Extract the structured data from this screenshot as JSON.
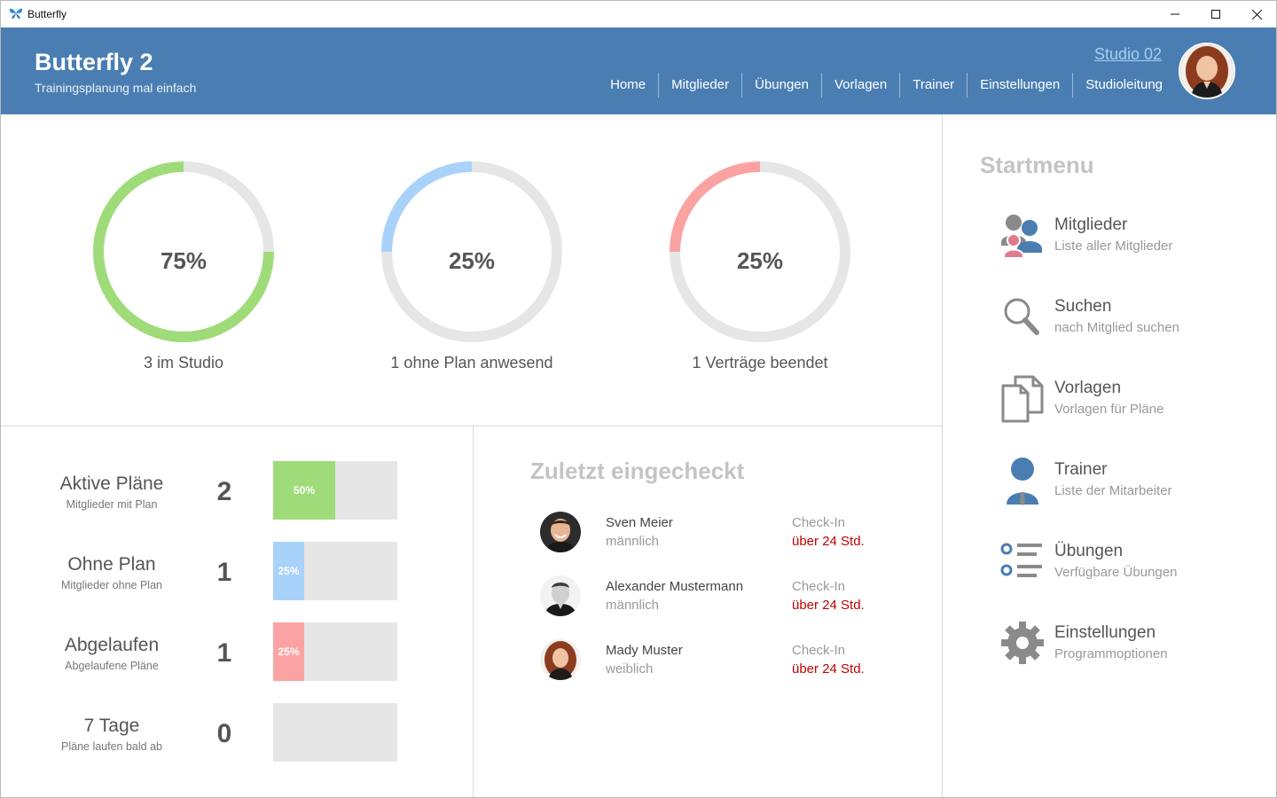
{
  "window": {
    "title": "Butterfly"
  },
  "header": {
    "title": "Butterfly 2",
    "subtitle": "Trainingsplanung mal einfach",
    "studio": "Studio 02",
    "nav": [
      "Home",
      "Mitglieder",
      "Übungen",
      "Vorlagen",
      "Trainer",
      "Einstellungen",
      "Studioleitung"
    ]
  },
  "gauges": [
    {
      "percent": "75%",
      "value": 0.75,
      "label": "3 im Studio",
      "color": "#9fdc79"
    },
    {
      "percent": "25%",
      "value": 0.25,
      "label": "1 ohne Plan anwesend",
      "color": "#a9d2fb"
    },
    {
      "percent": "25%",
      "value": 0.25,
      "label": "1 Verträge beendet",
      "color": "#fba3a3"
    }
  ],
  "stats": [
    {
      "title": "Aktive Pläne",
      "sub": "Mitglieder mit Plan",
      "count": "2",
      "bar_label": "50%",
      "fraction": 0.5,
      "color": "#9fdc79"
    },
    {
      "title": "Ohne Plan",
      "sub": "Mitglieder ohne Plan",
      "count": "1",
      "bar_label": "25%",
      "fraction": 0.25,
      "color": "#a9d2fb"
    },
    {
      "title": "Abgelaufen",
      "sub": "Abgelaufene Pläne",
      "count": "1",
      "bar_label": "25%",
      "fraction": 0.25,
      "color": "#fba3a3"
    },
    {
      "title": "7 Tage",
      "sub": "Pläne laufen bald ab",
      "count": "0",
      "bar_label": "",
      "fraction": 0,
      "color": "#e6e6e6"
    }
  ],
  "checkins": {
    "title": "Zuletzt eingecheckt",
    "items": [
      {
        "name": "Sven Meier",
        "gender": "männlich",
        "label": "Check-In",
        "time": "über 24 Std."
      },
      {
        "name": "Alexander Mustermann",
        "gender": "männlich",
        "label": "Check-In",
        "time": "über 24 Std."
      },
      {
        "name": "Mady Muster",
        "gender": "weiblich",
        "label": "Check-In",
        "time": "über 24 Std."
      }
    ]
  },
  "startmenu": {
    "title": "Startmenu",
    "items": [
      {
        "title": "Mitglieder",
        "sub": "Liste aller Mitglieder",
        "icon": "members-icon"
      },
      {
        "title": "Suchen",
        "sub": "nach Mitglied suchen",
        "icon": "search-icon"
      },
      {
        "title": "Vorlagen",
        "sub": "Vorlagen für Pläne",
        "icon": "documents-icon"
      },
      {
        "title": "Trainer",
        "sub": "Liste der Mitarbeiter",
        "icon": "trainer-icon"
      },
      {
        "title": "Übungen",
        "sub": "Verfügbare Übungen",
        "icon": "list-icon"
      },
      {
        "title": "Einstellungen",
        "sub": "Programmoptionen",
        "icon": "gear-icon"
      }
    ]
  }
}
